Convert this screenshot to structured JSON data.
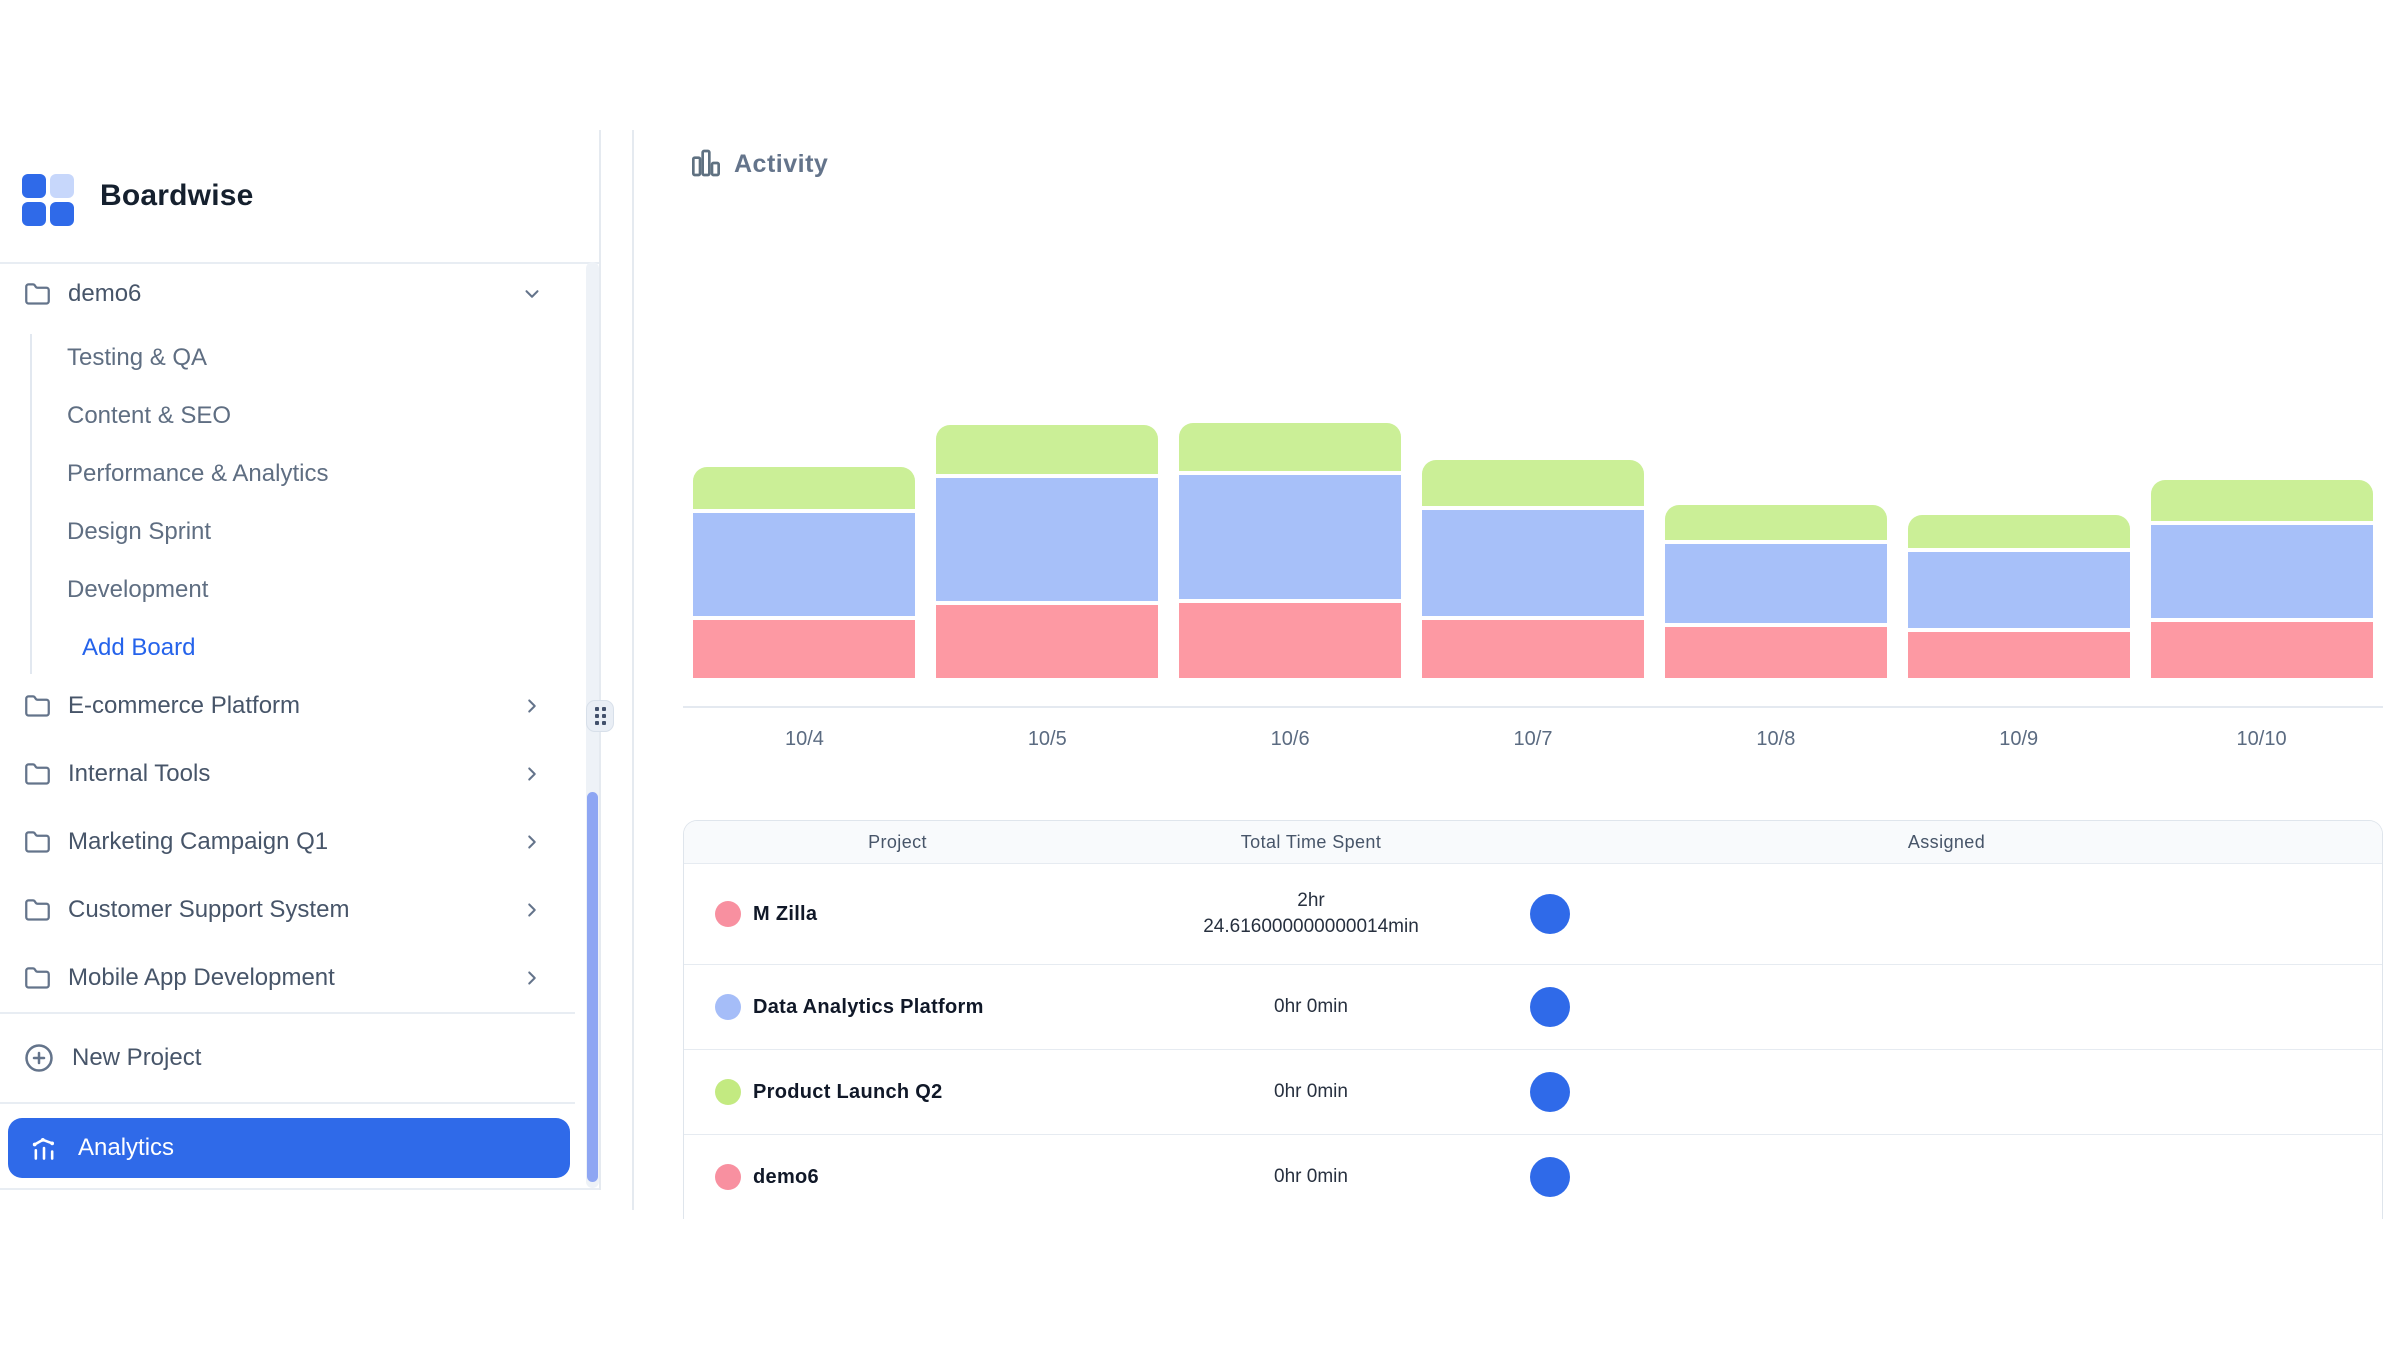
{
  "brand": {
    "name": "Boardwise"
  },
  "sidebar": {
    "expanded": {
      "label": "demo6",
      "boards": [
        "Testing & QA",
        "Content & SEO",
        "Performance & Analytics",
        "Design Sprint",
        "Development"
      ],
      "add_board": "Add Board"
    },
    "projects": [
      "E-commerce Platform",
      "Internal Tools",
      "Marketing Campaign Q1",
      "Customer Support System",
      "Mobile App Development"
    ],
    "new_project": "New Project",
    "analytics": "Analytics"
  },
  "main": {
    "title": "Activity"
  },
  "chart_data": {
    "type": "bar",
    "stacked": true,
    "categories": [
      "10/4",
      "10/5",
      "10/6",
      "10/7",
      "10/8",
      "10/9",
      "10/10"
    ],
    "series": [
      {
        "name": "M Zilla",
        "color": "#fd99a3",
        "values": [
          58,
          73,
          75,
          58,
          51,
          46,
          56
        ]
      },
      {
        "name": "Data Analytics Platform",
        "color": "#a7c0f9",
        "values": [
          103,
          123,
          124,
          106,
          79,
          76,
          93
        ]
      },
      {
        "name": "Product Launch Q2",
        "color": "#cbef97",
        "values": [
          42,
          49,
          48,
          46,
          35,
          33,
          41
        ]
      }
    ],
    "title": "Activity",
    "xlabel": "",
    "ylabel": "",
    "y_axis_visible": false,
    "legend": "none",
    "value_unit": "relative"
  },
  "table": {
    "columns": [
      "Project",
      "Total Time Spent",
      "Assigned"
    ],
    "rows": [
      {
        "project": "M Zilla",
        "dot_color": "#f890a0",
        "time_lines": [
          "2hr",
          "24.616000000000014min"
        ]
      },
      {
        "project": "Data Analytics Platform",
        "dot_color": "#a5bdf8",
        "time_lines": [
          "0hr 0min"
        ]
      },
      {
        "project": "Product Launch Q2",
        "dot_color": "#c3ea81",
        "time_lines": [
          "0hr 0min"
        ]
      },
      {
        "project": "demo6",
        "dot_color": "#f890a0",
        "time_lines": [
          "0hr 0min"
        ]
      }
    ]
  },
  "colors": {
    "accent": "#2f6ae9",
    "logo_light_square": "#c7d7fb",
    "add_board_link": "#2563eb"
  }
}
